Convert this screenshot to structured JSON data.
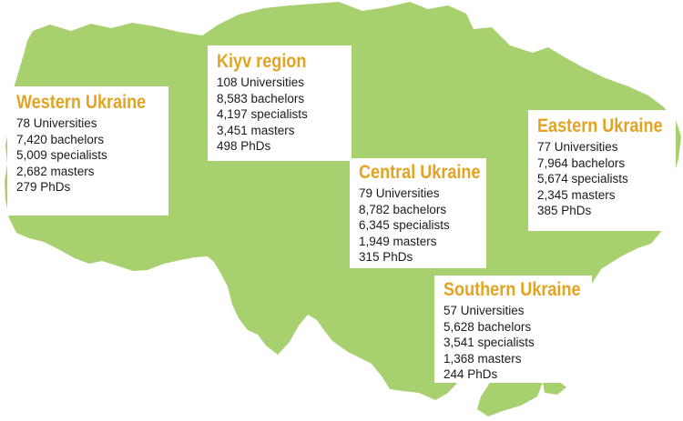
{
  "colors": {
    "land": "#a6d16e",
    "title": "#e2a322",
    "background": "#ffffff",
    "text": "#1a1a1a"
  },
  "regions": [
    {
      "key": "western",
      "title": "Western Ukraine",
      "stats": [
        "78 Universities",
        "7,420 bachelors",
        "5,009 specialists",
        "2,682 masters",
        "279 PhDs"
      ]
    },
    {
      "key": "kiyv",
      "title": "Kiyv region",
      "stats": [
        "108 Universities",
        "8,583 bachelors",
        "4,197 specialists",
        "3,451 masters",
        "498 PhDs"
      ]
    },
    {
      "key": "eastern",
      "title": "Eastern Ukraine",
      "stats": [
        "77 Universities",
        "7,964 bachelors",
        "5,674 specialists",
        "2,345 masters",
        "385 PhDs"
      ]
    },
    {
      "key": "central",
      "title": "Central Ukraine",
      "stats": [
        "79 Universities",
        "8,782 bachelors",
        "6,345 specialists",
        "1,949 masters",
        "315 PhDs"
      ]
    },
    {
      "key": "southern",
      "title": "Southern Ukraine",
      "stats": [
        "57 Universities",
        "5,628 bachelors",
        "3,541 specialists",
        "1,368 masters",
        "244 PhDs"
      ]
    }
  ]
}
